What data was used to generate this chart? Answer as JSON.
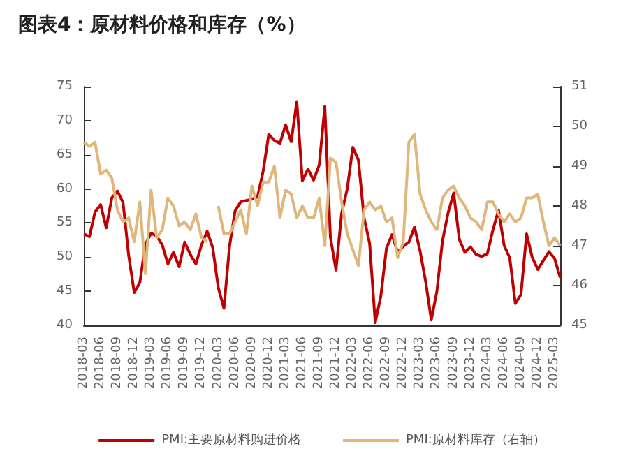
{
  "chart_data": {
    "type": "line",
    "title": "图表4：原材料价格和库存（%）",
    "categories": [
      "2018-03",
      null,
      null,
      "2018-06",
      null,
      null,
      "2018-09",
      null,
      null,
      "2018-12",
      null,
      null,
      "2019-03",
      null,
      null,
      "2019-06",
      null,
      null,
      "2019-09",
      null,
      null,
      "2019-12",
      null,
      null,
      "2020-03",
      null,
      null,
      "2020-06",
      null,
      null,
      "2020-09",
      null,
      null,
      "2020-12",
      null,
      null,
      "2021-03",
      null,
      null,
      "2021-06",
      null,
      null,
      "2021-09",
      null,
      null,
      "2021-12",
      null,
      null,
      "2022-03",
      null,
      null,
      "2022-06",
      null,
      null,
      "2022-09",
      null,
      null,
      "2022-12",
      null,
      null,
      "2023-03",
      null,
      null,
      "2023-06",
      null,
      null,
      "2023-09",
      null,
      null,
      "2023-12",
      null,
      null,
      "2024-03",
      null,
      null,
      "2024-06",
      null,
      null,
      "2024-09",
      null,
      null,
      "2024-12",
      null,
      null,
      "2025-03",
      null
    ],
    "series": [
      {
        "name": "PMI:主要原材料购进价格",
        "color": "#c00000",
        "values": [
          53.4,
          53.0,
          56.6,
          57.7,
          54.3,
          58.7,
          59.7,
          58.0,
          50.3,
          44.8,
          46.3,
          51.9,
          53.5,
          53.1,
          51.8,
          49.0,
          50.7,
          48.6,
          52.2,
          50.4,
          49.0,
          51.8,
          53.8,
          51.4,
          45.5,
          42.5,
          51.6,
          56.8,
          58.1,
          58.3,
          58.5,
          58.8,
          62.6,
          68.0,
          67.1,
          66.7,
          69.4,
          66.9,
          72.8,
          61.2,
          62.9,
          61.3,
          63.5,
          72.1,
          52.9,
          48.1,
          56.4,
          60.0,
          66.1,
          64.2,
          55.8,
          52.0,
          40.4,
          44.3,
          51.3,
          53.3,
          50.7,
          51.6,
          52.2,
          54.4,
          50.9,
          46.4,
          40.8,
          45.0,
          52.4,
          56.5,
          59.4,
          52.6,
          50.7,
          51.5,
          50.4,
          50.1,
          50.5,
          54.0,
          56.9,
          51.7,
          49.9,
          43.2,
          44.5,
          53.4,
          50.0,
          48.2,
          49.5,
          50.8,
          49.8,
          47.0
        ]
      },
      {
        "name": "PMI:原材料库存（右轴）",
        "color": "#dfb67c",
        "axis": "y2",
        "values": [
          49.6,
          49.5,
          49.6,
          48.8,
          48.9,
          48.7,
          47.9,
          47.6,
          47.7,
          47.1,
          48.1,
          46.3,
          48.4,
          47.2,
          47.4,
          48.2,
          48.0,
          47.5,
          47.6,
          47.4,
          47.8,
          47.2,
          47.1,
          null,
          48.0,
          47.3,
          47.3,
          47.6,
          47.9,
          47.3,
          48.5,
          48.0,
          48.6,
          48.6,
          49.0,
          47.7,
          48.4,
          48.3,
          47.7,
          48.0,
          47.7,
          47.7,
          48.2,
          47.0,
          49.2,
          49.1,
          48.1,
          47.3,
          46.9,
          46.5,
          47.9,
          48.1,
          47.9,
          48.0,
          47.6,
          47.7,
          46.7,
          47.1,
          49.6,
          49.8,
          48.3,
          47.9,
          47.6,
          47.4,
          48.2,
          48.4,
          48.5,
          48.2,
          48.0,
          47.7,
          47.6,
          47.4,
          48.1,
          48.1,
          47.8,
          47.6,
          47.8,
          47.6,
          47.7,
          48.2,
          48.2,
          48.3,
          47.6,
          47.0,
          47.2,
          47.0
        ]
      }
    ],
    "ylim": [
      40,
      75
    ],
    "yticks": [
      40,
      45,
      50,
      55,
      60,
      65,
      70,
      75
    ],
    "y2lim": [
      45,
      51
    ],
    "y2ticks": [
      45,
      46,
      47,
      48,
      49,
      50,
      51
    ],
    "legend": "bottom",
    "grid": false,
    "marker": "none",
    "line_style": "solid"
  }
}
